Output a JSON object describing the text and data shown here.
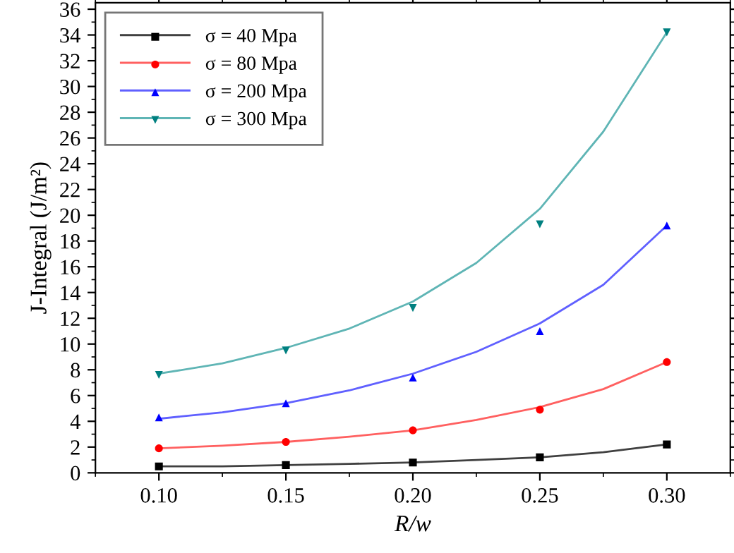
{
  "chart_data": {
    "type": "scatter",
    "xlabel": "R/w",
    "ylabel": "J-Integral (J/m²)",
    "x": [
      0.1,
      0.15,
      0.2,
      0.25,
      0.3
    ],
    "xlim": [
      0.075,
      0.325
    ],
    "xticks": [
      {
        "value": 0.1,
        "label": "0.10"
      },
      {
        "value": 0.15,
        "label": "0.15"
      },
      {
        "value": 0.2,
        "label": "0.20"
      },
      {
        "value": 0.25,
        "label": "0.25"
      },
      {
        "value": 0.3,
        "label": "0.30"
      }
    ],
    "ylim": [
      0,
      36.5
    ],
    "yticks": [
      0,
      2,
      4,
      6,
      8,
      10,
      12,
      14,
      16,
      18,
      20,
      22,
      24,
      26,
      28,
      30,
      32,
      34,
      36
    ],
    "grid": false,
    "legend": "top left",
    "series": [
      {
        "name": "σ = 40 Mpa",
        "color": "#000000",
        "marker": "square",
        "values": [
          0.5,
          0.6,
          0.8,
          1.2,
          2.2
        ]
      },
      {
        "name": "σ = 80 Mpa",
        "color": "#ff0000",
        "marker": "circle",
        "values": [
          1.9,
          2.4,
          3.3,
          4.9,
          8.6
        ]
      },
      {
        "name": "σ = 200 Mpa",
        "color": "#0000ff",
        "marker": "triangle",
        "values": [
          4.3,
          5.4,
          7.4,
          11.0,
          19.2
        ]
      },
      {
        "name": "σ = 300 Mpa",
        "color": "#008080",
        "marker": "triangle_down",
        "values": [
          7.6,
          9.5,
          12.8,
          19.3,
          34.2
        ]
      },
      {
        "type": "line",
        "color": "#404040",
        "x": [
          0.1,
          0.125,
          0.15,
          0.175,
          0.2,
          0.225,
          0.25,
          0.275,
          0.3
        ],
        "values": [
          0.5,
          0.5,
          0.6,
          0.7,
          0.8,
          1.0,
          1.2,
          1.6,
          2.2
        ]
      },
      {
        "type": "line",
        "color": "#ff6060",
        "x": [
          0.1,
          0.125,
          0.15,
          0.175,
          0.2,
          0.225,
          0.25,
          0.275,
          0.3
        ],
        "values": [
          1.9,
          2.1,
          2.4,
          2.8,
          3.3,
          4.1,
          5.1,
          6.5,
          8.6
        ]
      },
      {
        "type": "line",
        "color": "#6060ff",
        "x": [
          0.1,
          0.125,
          0.15,
          0.175,
          0.2,
          0.225,
          0.25,
          0.275,
          0.3
        ],
        "values": [
          4.2,
          4.7,
          5.4,
          6.4,
          7.7,
          9.4,
          11.6,
          14.6,
          19.2
        ]
      },
      {
        "type": "line",
        "color": "#5fb5b5",
        "x": [
          0.1,
          0.125,
          0.15,
          0.175,
          0.2,
          0.225,
          0.25,
          0.275,
          0.3
        ],
        "values": [
          7.7,
          8.5,
          9.7,
          11.2,
          13.3,
          16.3,
          20.5,
          26.5,
          34.2
        ]
      }
    ]
  }
}
